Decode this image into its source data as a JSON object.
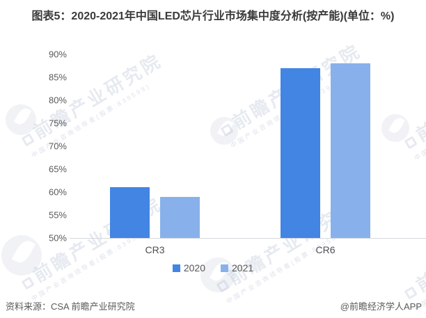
{
  "title": "图表5：2020-2021年中国LED芯片行业市场集中度分析(按产能)(单位：%)",
  "chart_data": {
    "type": "bar",
    "categories": [
      "CR3",
      "CR6"
    ],
    "series": [
      {
        "name": "2020",
        "color": "#4285E3",
        "values": [
          61,
          87
        ]
      },
      {
        "name": "2021",
        "color": "#88B1EC",
        "values": [
          59,
          88
        ]
      }
    ],
    "title": "图表5：2020-2021年中国LED芯片行业市场集中度分析(按产能)(单位：%)",
    "xlabel": "",
    "ylabel": "",
    "ylim": [
      50,
      90
    ],
    "ytick_step": 5,
    "ytick_suffix": "%",
    "grid": false,
    "legend_position": "bottom",
    "axis_line_color": "#d6d9de",
    "tick_label_color": "#595959"
  },
  "footer": {
    "source": "资料来源：CSA 前瞻产业研究院",
    "credit": "@前瞻经济学人APP"
  },
  "watermark": {
    "text_large": "前瞻产业研究院",
    "text_small": "中国产业咨询领导者(股票:839599)"
  }
}
